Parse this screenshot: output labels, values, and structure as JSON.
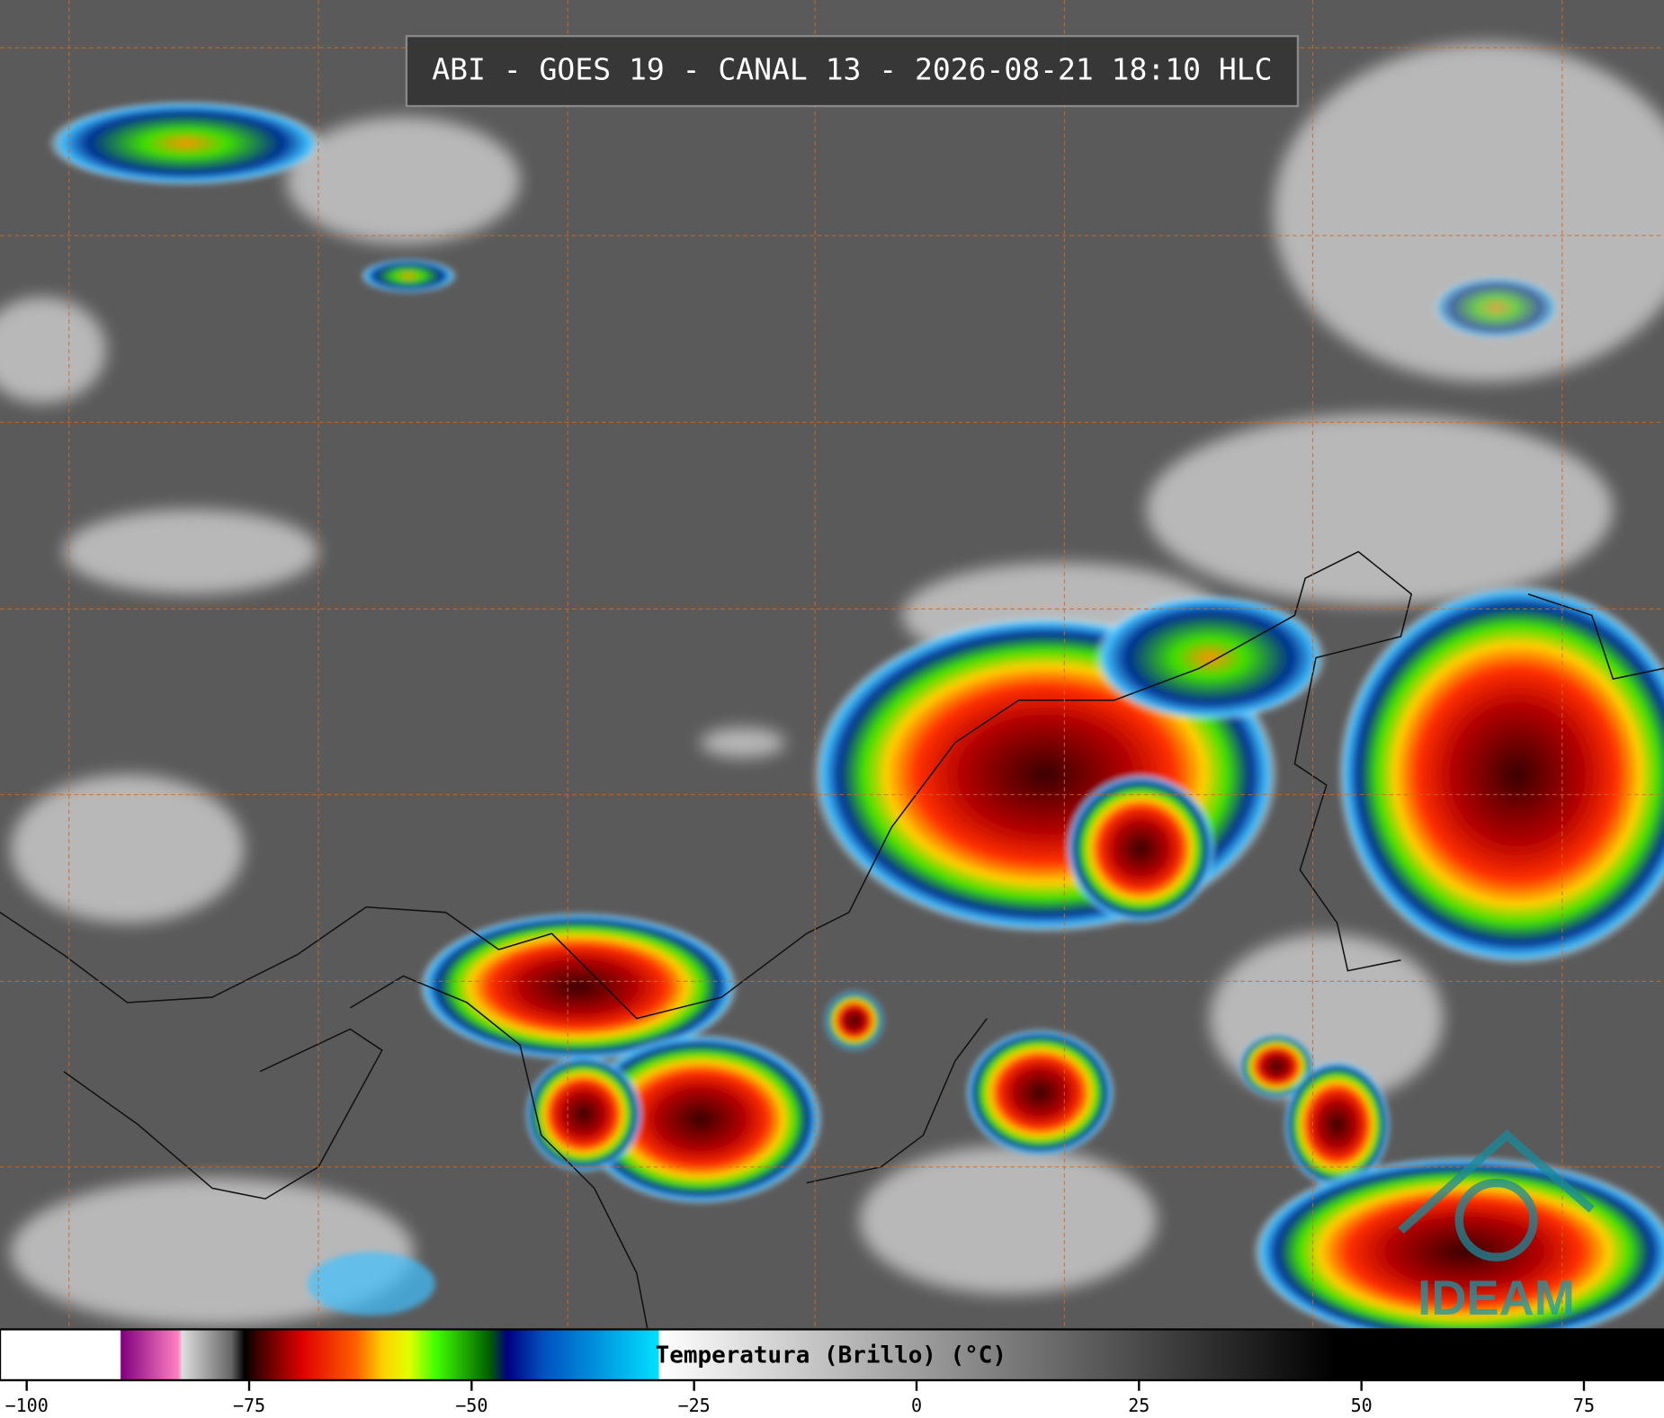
{
  "title": "ABI - GOES 19 - CANAL 13 - 2026-08-21 18:10 HLC",
  "logo": "IDEAM",
  "colorbar": {
    "label": "Temperatura (Brillo) (°C)",
    "xlim": [
      -103,
      84
    ],
    "xticks": [
      {
        "value": -100,
        "label": "−100"
      },
      {
        "value": -75,
        "label": "−75"
      },
      {
        "value": -50,
        "label": "−50"
      },
      {
        "value": -25,
        "label": "−25"
      },
      0,
      25,
      50,
      75
    ],
    "stops": [
      {
        "value": -103,
        "color": "#ffffff"
      },
      {
        "value": -89.5,
        "color": "#ffffff"
      },
      {
        "value": -89.4,
        "color": "#800080"
      },
      {
        "value": -83,
        "color": "#ff80c0"
      },
      {
        "value": -82.5,
        "color": "#dddddd"
      },
      {
        "value": -77,
        "color": "#666666"
      },
      {
        "value": -75.5,
        "color": "#000000"
      },
      {
        "value": -74,
        "color": "#400000"
      },
      {
        "value": -69,
        "color": "#e00000"
      },
      {
        "value": -63,
        "color": "#ff6000"
      },
      {
        "value": -60,
        "color": "#ffd000"
      },
      {
        "value": -57,
        "color": "#e0ff00"
      },
      {
        "value": -54,
        "color": "#40ff00"
      },
      {
        "value": -48,
        "color": "#006000"
      },
      {
        "value": -46,
        "color": "#000080"
      },
      {
        "value": -42,
        "color": "#0050c0"
      },
      {
        "value": -29,
        "color": "#00e0ff"
      },
      {
        "value": -28.9,
        "color": "#ffffff"
      },
      {
        "value": 47,
        "color": "#000000"
      },
      {
        "value": 84,
        "color": "#000000"
      }
    ]
  }
}
